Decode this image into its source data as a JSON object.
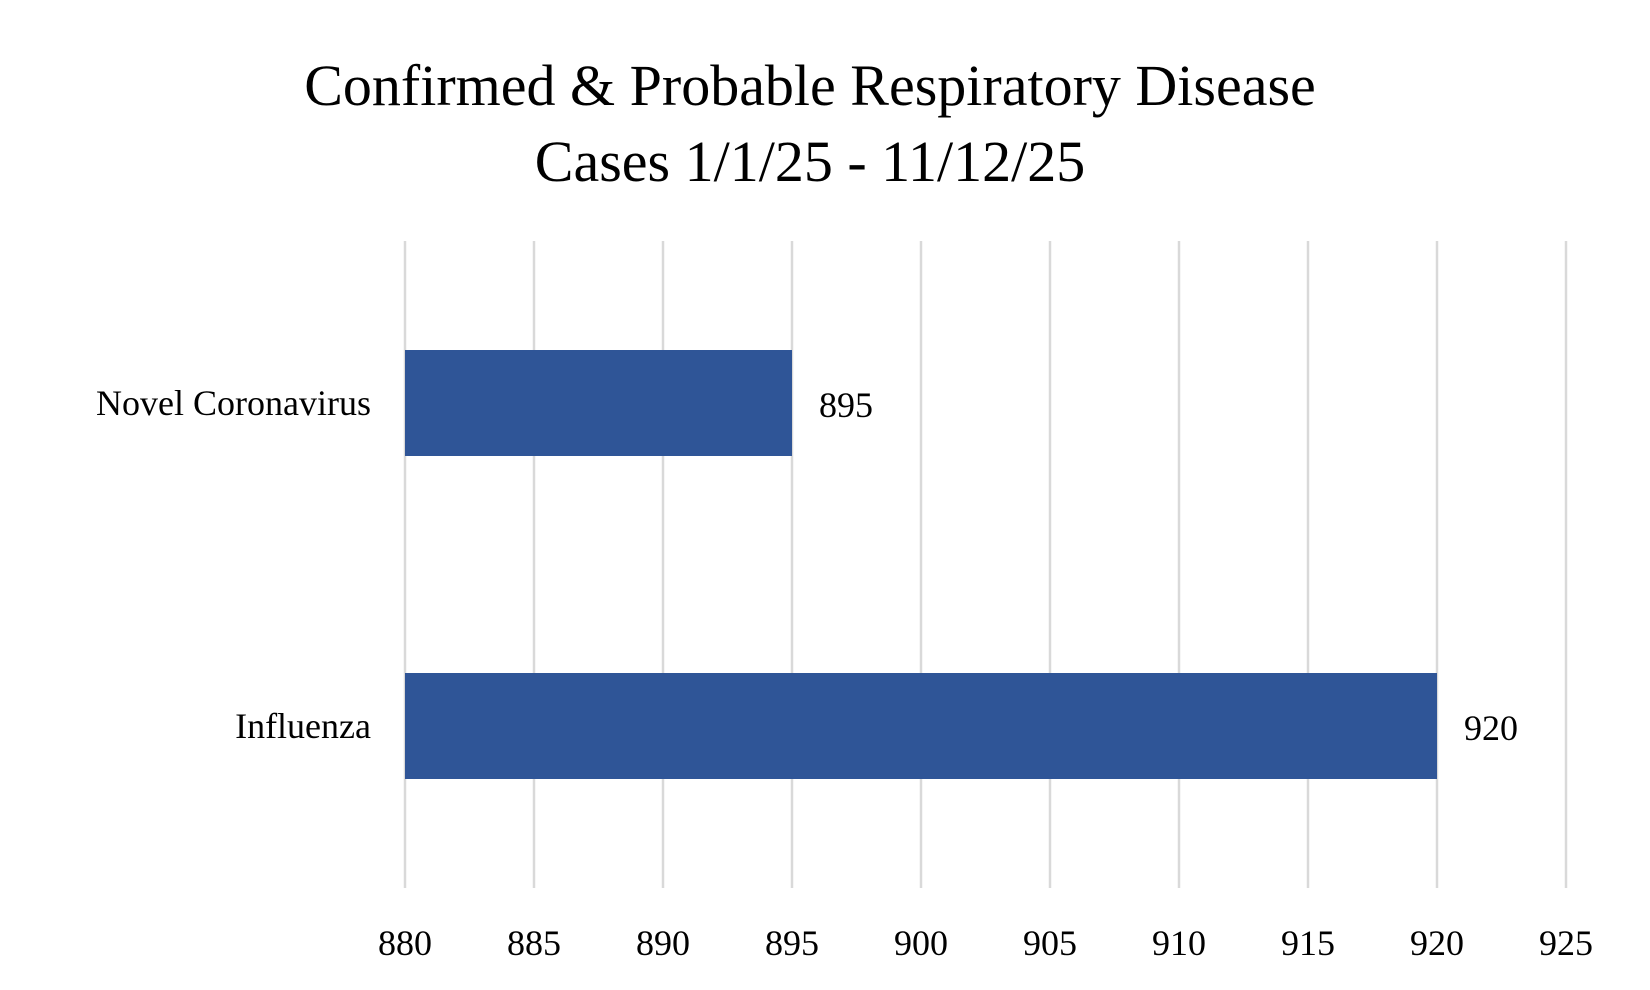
{
  "chart_data": {
    "type": "bar",
    "orientation": "horizontal",
    "title_lines": [
      "Confirmed & Probable Respiratory Disease",
      "Cases 1/1/25 - 11/12/25"
    ],
    "categories": [
      "Novel Coronavirus",
      "Influenza"
    ],
    "values": [
      895,
      920
    ],
    "xlabel": "",
    "ylabel": "",
    "xlim": [
      880,
      925
    ],
    "xticks": [
      880,
      885,
      890,
      895,
      900,
      905,
      910,
      915,
      920,
      925
    ],
    "grid": "vertical",
    "bar_color": "#2F5597",
    "grid_color": "#D9D9D9",
    "data_labels": true,
    "legend": "none"
  }
}
